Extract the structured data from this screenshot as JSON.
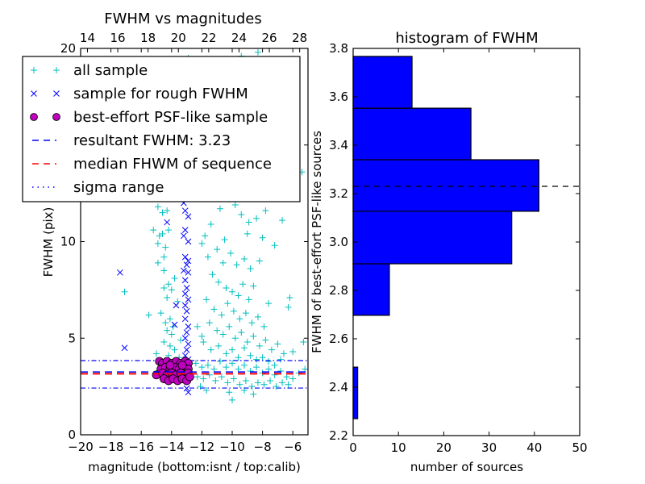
{
  "chart_data": [
    {
      "type": "scatter",
      "title": "FWHM vs magnitudes",
      "xlabel": "magnitude (bottom:isnt / top:calib)",
      "ylabel": "FWHM (pix)",
      "xlim": [
        -20,
        -5
      ],
      "ylim": [
        0,
        20
      ],
      "x_ticks": [
        "−20",
        "−18",
        "−16",
        "−14",
        "−12",
        "−10",
        "−8",
        "−6"
      ],
      "x_tick_values": [
        -20,
        -18,
        -16,
        -14,
        -12,
        -10,
        -8,
        -6
      ],
      "y_ticks": [
        "0",
        "5",
        "10",
        "15",
        "20"
      ],
      "y_tick_values": [
        0,
        5,
        10,
        15,
        20
      ],
      "top_axis": {
        "ticks": [
          "14",
          "16",
          "18",
          "20",
          "22",
          "24",
          "26",
          "28"
        ],
        "tick_values": [
          14,
          16,
          18,
          20,
          22,
          24,
          26,
          28
        ],
        "offset": 33.55
      },
      "legend": {
        "placement": "upper-left",
        "entries": [
          {
            "label": "all sample",
            "marker": "plus",
            "color": "#00bfbf"
          },
          {
            "label": "sample for rough FWHM",
            "marker": "x",
            "color": "#0000ff"
          },
          {
            "label": "best-effort PSF-like sample",
            "marker": "circle",
            "color": "#bf00bf"
          },
          {
            "label": "resultant FWHM: 3.23",
            "marker": "dashed",
            "color": "#0000ff"
          },
          {
            "label": "median FHWM of sequence",
            "marker": "dashed",
            "color": "#ff0000"
          },
          {
            "label": "sigma range",
            "marker": "dashdot",
            "color": "#0000ff"
          }
        ]
      },
      "lines": {
        "resultant_fwhm": 3.23,
        "median_fwhm": 3.2,
        "sigma_range": [
          2.42,
          3.84
        ]
      },
      "series": [
        {
          "name": "all sample",
          "color": "#00bfbf",
          "points": [
            [
              -14.9,
              11.8
            ],
            [
              -14.6,
              11.5
            ],
            [
              -14.3,
              11.6
            ],
            [
              -15.2,
              10.6
            ],
            [
              -14.8,
              10.3
            ],
            [
              -14.6,
              10.4
            ],
            [
              -14.2,
              10.6
            ],
            [
              -14.9,
              9.9
            ],
            [
              -14.4,
              9.7
            ],
            [
              -14.5,
              9.2
            ],
            [
              -14.9,
              8.9
            ],
            [
              -14.5,
              8.5
            ],
            [
              -14.2,
              7.8
            ],
            [
              -14.5,
              7.6
            ],
            [
              -14.0,
              7.5
            ],
            [
              -14.3,
              7.1
            ],
            [
              -14.7,
              6.3
            ],
            [
              -14.1,
              6.0
            ],
            [
              -14.4,
              5.8
            ],
            [
              -13.9,
              5.6
            ],
            [
              -14.3,
              5.4
            ],
            [
              -14.0,
              5.2
            ],
            [
              -14.5,
              4.8
            ],
            [
              -14.1,
              4.6
            ],
            [
              -13.8,
              4.4
            ],
            [
              -14.2,
              4.1
            ],
            [
              -15.0,
              4.2
            ],
            [
              -17.1,
              7.4
            ],
            [
              -15.5,
              6.2
            ],
            [
              -13.6,
              6.9
            ],
            [
              -13.8,
              8.1
            ],
            [
              -13.4,
              4.9
            ],
            [
              -13.5,
              4.0
            ],
            [
              -12.3,
              5.6
            ],
            [
              -12.0,
              9.9
            ],
            [
              -11.8,
              10.3
            ],
            [
              -11.4,
              10.9
            ],
            [
              -10.8,
              11.7
            ],
            [
              -10.2,
              12.2
            ],
            [
              -9.8,
              11.9
            ],
            [
              -9.4,
              11.4
            ],
            [
              -8.9,
              11.0
            ],
            [
              -8.4,
              11.2
            ],
            [
              -7.8,
              11.6
            ],
            [
              -6.7,
              11.1
            ],
            [
              -11.6,
              9.2
            ],
            [
              -11.0,
              9.6
            ],
            [
              -10.6,
              8.9
            ],
            [
              -10.1,
              9.4
            ],
            [
              -9.7,
              8.8
            ],
            [
              -9.2,
              9.1
            ],
            [
              -8.8,
              8.6
            ],
            [
              -8.2,
              9.0
            ],
            [
              -7.2,
              9.8
            ],
            [
              -6.2,
              7.1
            ],
            [
              -6.3,
              6.6
            ],
            [
              -7.6,
              6.8
            ],
            [
              -8.6,
              7.7
            ],
            [
              -11.3,
              8.3
            ],
            [
              -10.9,
              7.9
            ],
            [
              -10.4,
              7.6
            ],
            [
              -10.0,
              7.4
            ],
            [
              -9.6,
              7.2
            ],
            [
              -9.3,
              7.8
            ],
            [
              -8.9,
              7.0
            ],
            [
              -11.7,
              7.0
            ],
            [
              -11.2,
              6.5
            ],
            [
              -10.7,
              6.2
            ],
            [
              -10.3,
              6.8
            ],
            [
              -9.9,
              6.4
            ],
            [
              -9.5,
              6.0
            ],
            [
              -9.1,
              6.3
            ],
            [
              -8.7,
              5.8
            ],
            [
              -8.3,
              6.1
            ],
            [
              -7.9,
              5.6
            ],
            [
              -11.5,
              5.8
            ],
            [
              -11.0,
              5.4
            ],
            [
              -10.6,
              5.2
            ],
            [
              -10.2,
              5.6
            ],
            [
              -9.8,
              5.0
            ],
            [
              -9.4,
              5.3
            ],
            [
              -9.0,
              4.8
            ],
            [
              -8.6,
              5.1
            ],
            [
              -8.2,
              4.6
            ],
            [
              -7.8,
              4.9
            ],
            [
              -7.4,
              4.4
            ],
            [
              -7.0,
              4.7
            ],
            [
              -6.6,
              4.2
            ],
            [
              -6.0,
              4.3
            ],
            [
              -5.3,
              4.8
            ],
            [
              -11.9,
              4.8
            ],
            [
              -11.4,
              4.4
            ],
            [
              -10.9,
              4.6
            ],
            [
              -10.4,
              4.2
            ],
            [
              -10.0,
              4.4
            ],
            [
              -9.6,
              4.0
            ],
            [
              -9.2,
              4.5
            ],
            [
              -8.8,
              4.1
            ],
            [
              -8.4,
              3.9
            ],
            [
              -8.0,
              4.0
            ],
            [
              -7.6,
              3.8
            ],
            [
              -7.2,
              3.6
            ],
            [
              -6.8,
              3.9
            ],
            [
              -12.4,
              3.7
            ],
            [
              -12.0,
              3.5
            ],
            [
              -11.6,
              3.6
            ],
            [
              -11.2,
              3.4
            ],
            [
              -10.8,
              3.8
            ],
            [
              -10.4,
              3.5
            ],
            [
              -10.0,
              3.7
            ],
            [
              -9.6,
              3.4
            ],
            [
              -9.2,
              3.6
            ],
            [
              -8.8,
              3.3
            ],
            [
              -8.4,
              3.5
            ],
            [
              -8.0,
              3.2
            ],
            [
              -7.6,
              3.4
            ],
            [
              -7.2,
              3.1
            ],
            [
              -6.8,
              3.3
            ],
            [
              -6.4,
              3.0
            ],
            [
              -6.0,
              2.9
            ],
            [
              -5.6,
              3.2
            ],
            [
              -5.2,
              3.4
            ],
            [
              -12.3,
              3.0
            ],
            [
              -11.9,
              2.9
            ],
            [
              -11.5,
              3.1
            ],
            [
              -11.1,
              2.8
            ],
            [
              -10.7,
              3.0
            ],
            [
              -10.3,
              2.7
            ],
            [
              -9.9,
              2.9
            ],
            [
              -9.5,
              2.6
            ],
            [
              -9.1,
              2.8
            ],
            [
              -8.7,
              2.5
            ],
            [
              -8.3,
              2.7
            ],
            [
              -7.9,
              2.6
            ],
            [
              -7.5,
              2.8
            ],
            [
              -7.1,
              2.5
            ],
            [
              -6.7,
              2.7
            ],
            [
              -6.3,
              2.6
            ],
            [
              -12.1,
              2.5
            ],
            [
              -11.7,
              2.3
            ],
            [
              -10.2,
              2.2
            ],
            [
              -9.2,
              2.3
            ],
            [
              -8.6,
              2.1
            ],
            [
              -10.0,
              1.8
            ],
            [
              -12.0,
              5.1
            ],
            [
              -10.5,
              10.1
            ],
            [
              -9.0,
              10.4
            ],
            [
              -8.0,
              10.2
            ],
            [
              -10.8,
              12.6
            ],
            [
              -9.5,
              13.1
            ],
            [
              -8.6,
              12.8
            ],
            [
              -10.2,
              13.8
            ],
            [
              -9.3,
              14.4
            ],
            [
              -10.9,
              15.2
            ],
            [
              -9.8,
              16.0
            ],
            [
              -9.0,
              15.5
            ],
            [
              -10.4,
              17.1
            ],
            [
              -9.6,
              18.3
            ],
            [
              -9.1,
              19.3
            ],
            [
              -9.4,
              19.6
            ],
            [
              -12.9,
              19.5
            ],
            [
              -8.3,
              19.8
            ],
            [
              -6.8,
              15.1
            ],
            [
              -5.4,
              13.6
            ]
          ]
        },
        {
          "name": "sample for rough FWHM",
          "color": "#0000ff",
          "points": [
            [
              -17.4,
              8.4
            ],
            [
              -17.1,
              4.5
            ],
            [
              -14.3,
              11.0
            ],
            [
              -13.8,
              5.7
            ],
            [
              -13.7,
              6.7
            ],
            [
              -13.2,
              12.0
            ],
            [
              -13.1,
              11.6
            ],
            [
              -12.9,
              11.3
            ],
            [
              -13.1,
              10.6
            ],
            [
              -13.2,
              10.3
            ],
            [
              -12.9,
              10.0
            ],
            [
              -13.1,
              9.2
            ],
            [
              -12.9,
              9.0
            ],
            [
              -13.0,
              8.8
            ],
            [
              -13.2,
              8.5
            ],
            [
              -12.9,
              8.4
            ],
            [
              -13.1,
              8.0
            ],
            [
              -13.0,
              7.6
            ],
            [
              -13.1,
              7.3
            ],
            [
              -12.9,
              7.0
            ],
            [
              -13.1,
              6.7
            ],
            [
              -13.0,
              6.4
            ],
            [
              -13.1,
              6.0
            ],
            [
              -12.9,
              5.6
            ],
            [
              -13.0,
              5.3
            ],
            [
              -13.1,
              5.0
            ],
            [
              -12.9,
              4.7
            ],
            [
              -13.0,
              4.4
            ],
            [
              -13.1,
              4.1
            ],
            [
              -12.9,
              3.9
            ],
            [
              -13.0,
              2.4
            ],
            [
              -12.9,
              2.2
            ],
            [
              -13.2,
              13.5
            ],
            [
              -13.0,
              14.6
            ],
            [
              -13.1,
              15.8
            ],
            [
              -12.9,
              16.9
            ],
            [
              -13.0,
              18.2
            ],
            [
              -13.1,
              19.4
            ]
          ]
        },
        {
          "name": "best-effort PSF-like sample",
          "color": "#bf00bf",
          "points": [
            [
              -14.8,
              3.8
            ],
            [
              -14.6,
              3.7
            ],
            [
              -14.3,
              3.8
            ],
            [
              -14.0,
              3.7
            ],
            [
              -13.7,
              3.8
            ],
            [
              -13.4,
              3.7
            ],
            [
              -13.1,
              3.8
            ],
            [
              -12.9,
              3.7
            ],
            [
              -14.7,
              3.4
            ],
            [
              -14.4,
              3.5
            ],
            [
              -14.1,
              3.4
            ],
            [
              -13.8,
              3.5
            ],
            [
              -13.5,
              3.4
            ],
            [
              -13.2,
              3.5
            ],
            [
              -12.9,
              3.4
            ],
            [
              -15.0,
              3.1
            ],
            [
              -14.6,
              3.2
            ],
            [
              -14.3,
              3.1
            ],
            [
              -14.0,
              3.2
            ],
            [
              -13.7,
              3.1
            ],
            [
              -13.4,
              3.2
            ],
            [
              -13.1,
              3.1
            ],
            [
              -12.9,
              3.2
            ],
            [
              -14.5,
              2.9
            ],
            [
              -14.2,
              2.8
            ],
            [
              -13.9,
              2.9
            ],
            [
              -13.6,
              2.8
            ],
            [
              -13.3,
              2.9
            ],
            [
              -13.0,
              2.8
            ],
            [
              -14.1,
              3.6
            ],
            [
              -13.3,
              3.6
            ],
            [
              -12.8,
              3.0
            ]
          ]
        }
      ]
    },
    {
      "type": "bar",
      "orientation": "horizontal",
      "title": "histogram of FWHM",
      "xlabel": "number of sources",
      "ylabel": "FWHM of best-effort PSF-like sources",
      "xlim": [
        0,
        50
      ],
      "ylim": [
        2.2,
        3.8
      ],
      "x_ticks": [
        "0",
        "10",
        "20",
        "30",
        "40",
        "50"
      ],
      "x_tick_values": [
        0,
        10,
        20,
        30,
        40,
        50
      ],
      "y_ticks": [
        "2.2",
        "2.4",
        "2.6",
        "2.8",
        "3.0",
        "3.2",
        "3.4",
        "3.6",
        "3.8"
      ],
      "y_tick_values": [
        2.2,
        2.4,
        2.6,
        2.8,
        3.0,
        3.2,
        3.4,
        3.6,
        3.8
      ],
      "bars_color": "#0000ff",
      "bins": [
        {
          "from": 2.27,
          "to": 2.483,
          "count": 1
        },
        {
          "from": 2.483,
          "to": 2.697,
          "count": 0
        },
        {
          "from": 2.697,
          "to": 2.91,
          "count": 8
        },
        {
          "from": 2.91,
          "to": 3.127,
          "count": 35
        },
        {
          "from": 3.127,
          "to": 3.34,
          "count": 41
        },
        {
          "from": 3.34,
          "to": 3.553,
          "count": 26
        },
        {
          "from": 3.553,
          "to": 3.767,
          "count": 13
        }
      ],
      "reference_line": 3.23
    }
  ]
}
